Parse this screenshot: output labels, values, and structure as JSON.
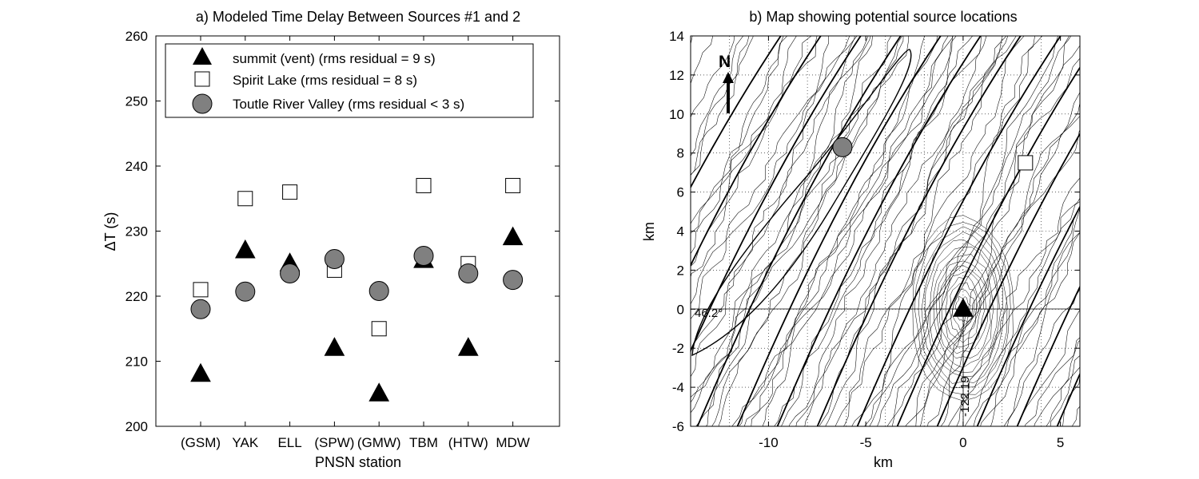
{
  "chart_data": [
    {
      "type": "scatter",
      "title": "a) Modeled Time Delay Between Sources #1 and 2",
      "xlabel": "PNSN station",
      "ylabel": "ΔT (s)",
      "categories": [
        "(GSM)",
        "YAK",
        "ELL",
        "(SPW)",
        "(GMW)",
        "TBM",
        "(HTW)",
        "MDW"
      ],
      "ylim": [
        200,
        260
      ],
      "yticks": [
        200,
        210,
        220,
        230,
        240,
        250,
        260
      ],
      "grid": false,
      "legend_position": "top",
      "series": [
        {
          "name": "summit (vent) (rms residual = 9 s)",
          "marker": "triangle",
          "color": "#000000",
          "values": [
            208,
            227,
            225,
            212,
            205,
            225.5,
            212,
            229
          ]
        },
        {
          "name": "Spirit Lake (rms residual = 8 s)",
          "marker": "square",
          "color": "#ffffff",
          "values": [
            221,
            235,
            236,
            224,
            215,
            237,
            225,
            237
          ]
        },
        {
          "name": "Toutle River Valley (rms residual < 3 s)",
          "marker": "circle",
          "color": "#808080",
          "values": [
            218,
            220.7,
            223.5,
            225.7,
            220.8,
            226.2,
            223.5,
            222.5
          ]
        }
      ]
    },
    {
      "type": "scatter",
      "title": "b) Map showing potential source locations",
      "xlabel": "km",
      "ylabel": "km",
      "xlim": [
        -14,
        6
      ],
      "ylim": [
        -6,
        14
      ],
      "xticks": [
        -10,
        -5,
        0,
        5
      ],
      "yticks": [
        -6,
        -4,
        -2,
        0,
        2,
        4,
        6,
        8,
        10,
        12,
        14
      ],
      "grid": true,
      "north_arrow_label": "N",
      "latitude_label": "46.2°",
      "longitude_label": "-122.19",
      "points": [
        {
          "name": "summit (vent)",
          "marker": "triangle",
          "color": "#000000",
          "x": 0,
          "y": 0
        },
        {
          "name": "Spirit Lake",
          "marker": "square",
          "color": "#ffffff",
          "x": 3.2,
          "y": 7.5
        },
        {
          "name": "Toutle River Valley",
          "marker": "circle",
          "color": "#808080",
          "x": -6.2,
          "y": 8.3
        }
      ]
    }
  ]
}
